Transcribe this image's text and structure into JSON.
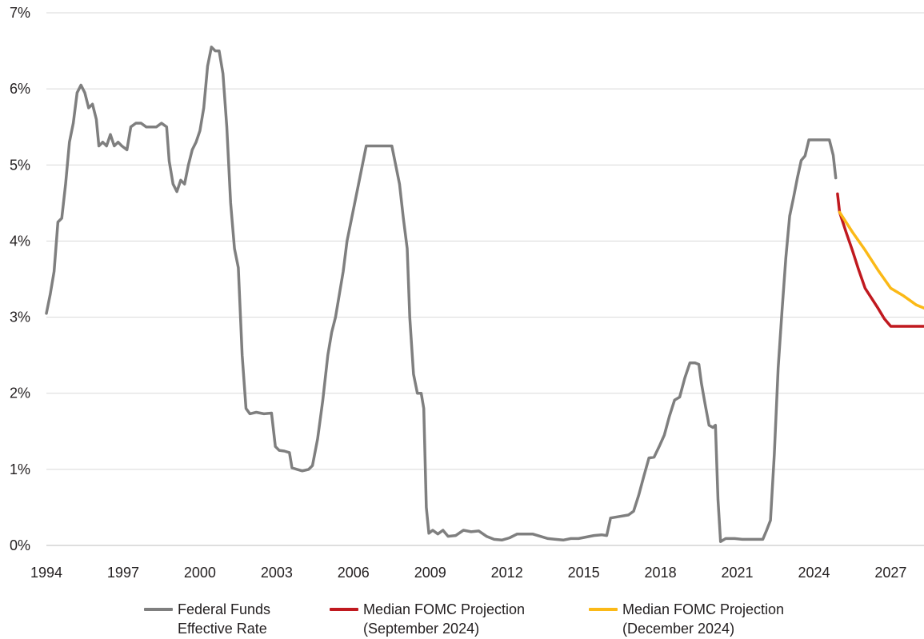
{
  "chart_data": {
    "type": "line",
    "title": "",
    "xlabel": "",
    "ylabel": "",
    "xlim": [
      1994,
      2028.3
    ],
    "ylim": [
      0,
      7
    ],
    "x_tick_labels": [
      "1994",
      "1997",
      "2000",
      "2003",
      "2006",
      "2009",
      "2012",
      "2015",
      "2018",
      "2021",
      "2024",
      "2027"
    ],
    "x_tick_values": [
      1994,
      1997,
      2000,
      2003,
      2006,
      2009,
      2012,
      2015,
      2018,
      2021,
      2024,
      2027
    ],
    "y_tick_labels": [
      "0%",
      "1%",
      "2%",
      "3%",
      "4%",
      "5%",
      "6%",
      "7%"
    ],
    "y_tick_values": [
      0,
      1,
      2,
      3,
      4,
      5,
      6,
      7
    ],
    "grid": "horizontal",
    "legend_position": "bottom",
    "series": [
      {
        "name": "Federal Funds Effective Rate",
        "legend_label": "Federal Funds\nEffective Rate",
        "color": "#7f7f7f",
        "points": [
          [
            1994.0,
            3.05
          ],
          [
            1994.15,
            3.3
          ],
          [
            1994.3,
            3.6
          ],
          [
            1994.45,
            4.25
          ],
          [
            1994.6,
            4.3
          ],
          [
            1994.75,
            4.75
          ],
          [
            1994.9,
            5.3
          ],
          [
            1995.05,
            5.55
          ],
          [
            1995.2,
            5.95
          ],
          [
            1995.35,
            6.05
          ],
          [
            1995.5,
            5.95
          ],
          [
            1995.65,
            5.75
          ],
          [
            1995.8,
            5.8
          ],
          [
            1995.95,
            5.6
          ],
          [
            1996.05,
            5.25
          ],
          [
            1996.2,
            5.3
          ],
          [
            1996.35,
            5.25
          ],
          [
            1996.5,
            5.4
          ],
          [
            1996.65,
            5.25
          ],
          [
            1996.8,
            5.3
          ],
          [
            1996.95,
            5.25
          ],
          [
            1997.15,
            5.2
          ],
          [
            1997.3,
            5.5
          ],
          [
            1997.5,
            5.55
          ],
          [
            1997.7,
            5.55
          ],
          [
            1997.9,
            5.5
          ],
          [
            1998.1,
            5.5
          ],
          [
            1998.3,
            5.5
          ],
          [
            1998.5,
            5.55
          ],
          [
            1998.7,
            5.5
          ],
          [
            1998.8,
            5.05
          ],
          [
            1998.95,
            4.75
          ],
          [
            1999.1,
            4.65
          ],
          [
            1999.25,
            4.8
          ],
          [
            1999.4,
            4.75
          ],
          [
            1999.55,
            5.0
          ],
          [
            1999.7,
            5.2
          ],
          [
            1999.85,
            5.3
          ],
          [
            2000.0,
            5.45
          ],
          [
            2000.15,
            5.75
          ],
          [
            2000.3,
            6.3
          ],
          [
            2000.45,
            6.55
          ],
          [
            2000.6,
            6.5
          ],
          [
            2000.75,
            6.5
          ],
          [
            2000.9,
            6.2
          ],
          [
            2001.05,
            5.5
          ],
          [
            2001.2,
            4.5
          ],
          [
            2001.35,
            3.9
          ],
          [
            2001.5,
            3.65
          ],
          [
            2001.65,
            2.5
          ],
          [
            2001.8,
            1.8
          ],
          [
            2001.95,
            1.73
          ],
          [
            2002.2,
            1.75
          ],
          [
            2002.5,
            1.73
          ],
          [
            2002.8,
            1.74
          ],
          [
            2002.95,
            1.3
          ],
          [
            2003.1,
            1.25
          ],
          [
            2003.3,
            1.24
          ],
          [
            2003.5,
            1.22
          ],
          [
            2003.6,
            1.02
          ],
          [
            2003.8,
            1.0
          ],
          [
            2004.0,
            0.98
          ],
          [
            2004.25,
            1.0
          ],
          [
            2004.4,
            1.05
          ],
          [
            2004.6,
            1.4
          ],
          [
            2004.8,
            1.9
          ],
          [
            2005.0,
            2.5
          ],
          [
            2005.15,
            2.8
          ],
          [
            2005.3,
            3.0
          ],
          [
            2005.45,
            3.3
          ],
          [
            2005.6,
            3.6
          ],
          [
            2005.75,
            4.0
          ],
          [
            2005.9,
            4.25
          ],
          [
            2006.05,
            4.5
          ],
          [
            2006.2,
            4.75
          ],
          [
            2006.35,
            5.0
          ],
          [
            2006.5,
            5.25
          ],
          [
            2006.8,
            5.25
          ],
          [
            2007.1,
            5.25
          ],
          [
            2007.3,
            5.25
          ],
          [
            2007.5,
            5.25
          ],
          [
            2007.65,
            5.0
          ],
          [
            2007.8,
            4.75
          ],
          [
            2007.95,
            4.3
          ],
          [
            2008.1,
            3.9
          ],
          [
            2008.2,
            3.0
          ],
          [
            2008.35,
            2.25
          ],
          [
            2008.5,
            2.0
          ],
          [
            2008.65,
            2.0
          ],
          [
            2008.75,
            1.8
          ],
          [
            2008.85,
            0.5
          ],
          [
            2008.95,
            0.16
          ],
          [
            2009.1,
            0.2
          ],
          [
            2009.3,
            0.15
          ],
          [
            2009.5,
            0.2
          ],
          [
            2009.7,
            0.12
          ],
          [
            2010.0,
            0.13
          ],
          [
            2010.3,
            0.2
          ],
          [
            2010.6,
            0.18
          ],
          [
            2010.9,
            0.19
          ],
          [
            2011.2,
            0.12
          ],
          [
            2011.5,
            0.08
          ],
          [
            2011.8,
            0.07
          ],
          [
            2012.1,
            0.1
          ],
          [
            2012.4,
            0.15
          ],
          [
            2012.7,
            0.15
          ],
          [
            2013.0,
            0.15
          ],
          [
            2013.3,
            0.12
          ],
          [
            2013.6,
            0.09
          ],
          [
            2013.9,
            0.08
          ],
          [
            2014.2,
            0.07
          ],
          [
            2014.5,
            0.09
          ],
          [
            2014.8,
            0.09
          ],
          [
            2015.1,
            0.11
          ],
          [
            2015.4,
            0.13
          ],
          [
            2015.7,
            0.14
          ],
          [
            2015.9,
            0.13
          ],
          [
            2016.05,
            0.36
          ],
          [
            2016.4,
            0.38
          ],
          [
            2016.75,
            0.4
          ],
          [
            2016.95,
            0.45
          ],
          [
            2017.15,
            0.66
          ],
          [
            2017.35,
            0.91
          ],
          [
            2017.55,
            1.15
          ],
          [
            2017.75,
            1.16
          ],
          [
            2017.95,
            1.3
          ],
          [
            2018.15,
            1.45
          ],
          [
            2018.35,
            1.7
          ],
          [
            2018.55,
            1.91
          ],
          [
            2018.75,
            1.95
          ],
          [
            2018.95,
            2.2
          ],
          [
            2019.15,
            2.4
          ],
          [
            2019.35,
            2.4
          ],
          [
            2019.5,
            2.38
          ],
          [
            2019.6,
            2.13
          ],
          [
            2019.75,
            1.85
          ],
          [
            2019.9,
            1.58
          ],
          [
            2020.05,
            1.55
          ],
          [
            2020.15,
            1.58
          ],
          [
            2020.25,
            0.6
          ],
          [
            2020.35,
            0.05
          ],
          [
            2020.55,
            0.09
          ],
          [
            2020.9,
            0.09
          ],
          [
            2021.2,
            0.08
          ],
          [
            2021.5,
            0.08
          ],
          [
            2021.8,
            0.08
          ],
          [
            2022.0,
            0.08
          ],
          [
            2022.15,
            0.2
          ],
          [
            2022.3,
            0.33
          ],
          [
            2022.45,
            1.2
          ],
          [
            2022.6,
            2.33
          ],
          [
            2022.75,
            3.08
          ],
          [
            2022.9,
            3.78
          ],
          [
            2023.05,
            4.33
          ],
          [
            2023.2,
            4.57
          ],
          [
            2023.35,
            4.83
          ],
          [
            2023.5,
            5.06
          ],
          [
            2023.65,
            5.12
          ],
          [
            2023.8,
            5.33
          ],
          [
            2024.0,
            5.33
          ],
          [
            2024.3,
            5.33
          ],
          [
            2024.6,
            5.33
          ],
          [
            2024.75,
            5.13
          ],
          [
            2024.85,
            4.83
          ]
        ]
      },
      {
        "name": "Median FOMC Projection (September 2024)",
        "legend_label": "Median FOMC Projection\n(September 2024)",
        "color": "#c0191f",
        "points": [
          [
            2024.92,
            4.62
          ],
          [
            2025.0,
            4.38
          ],
          [
            2025.25,
            4.12
          ],
          [
            2025.5,
            3.88
          ],
          [
            2025.75,
            3.62
          ],
          [
            2026.0,
            3.38
          ],
          [
            2026.25,
            3.25
          ],
          [
            2026.5,
            3.12
          ],
          [
            2026.75,
            2.98
          ],
          [
            2027.0,
            2.88
          ],
          [
            2027.4,
            2.88
          ],
          [
            2027.8,
            2.88
          ],
          [
            2028.3,
            2.88
          ]
        ]
      },
      {
        "name": "Median FOMC Projection (December 2024)",
        "legend_label": "Median FOMC Projection\n(December 2024)",
        "color": "#fbb917",
        "points": [
          [
            2025.0,
            4.38
          ],
          [
            2025.5,
            4.12
          ],
          [
            2026.0,
            3.88
          ],
          [
            2026.5,
            3.62
          ],
          [
            2027.0,
            3.38
          ],
          [
            2027.5,
            3.28
          ],
          [
            2028.0,
            3.16
          ],
          [
            2028.3,
            3.12
          ]
        ]
      }
    ]
  }
}
